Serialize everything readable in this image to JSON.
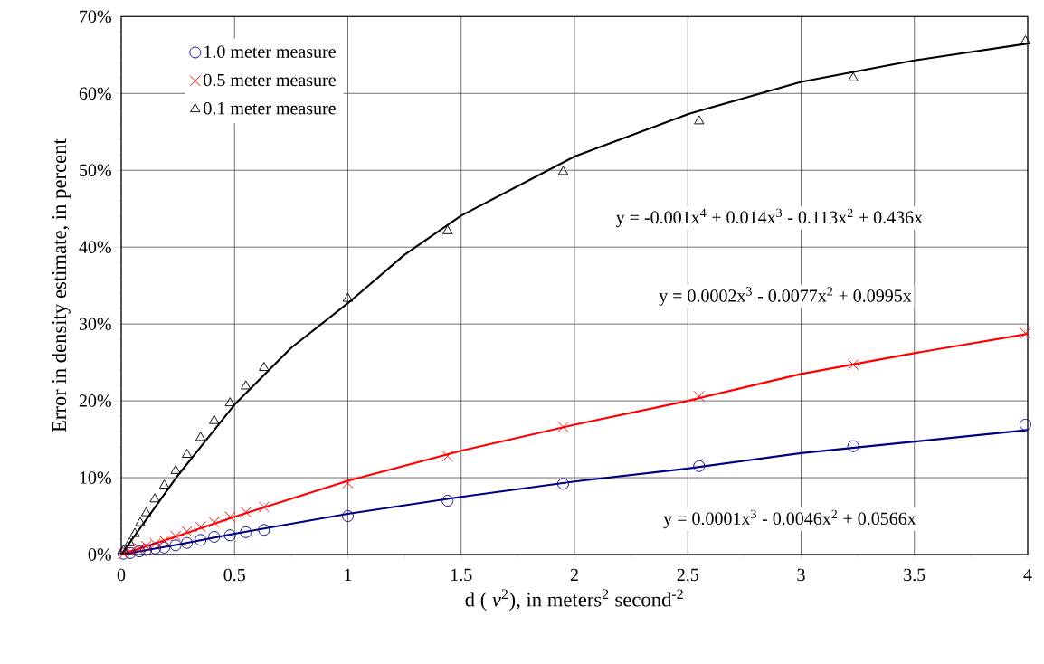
{
  "chart_data": {
    "type": "scatter",
    "xlabel": "d ( *v*$^{2}$), in meters$^{2}$ second$^{-2}$",
    "ylabel": "Error in density estimate, in percent",
    "xlim": [
      0,
      4
    ],
    "xticks": [
      0,
      0.5,
      1,
      1.5,
      2,
      2.5,
      3,
      3.5,
      4
    ],
    "ylim": [
      0,
      70
    ],
    "yticks": [
      {
        "value": 0,
        "label": "0%"
      },
      {
        "value": 10,
        "label": "10%"
      },
      {
        "value": 20,
        "label": "20%"
      },
      {
        "value": 30,
        "label": "30%"
      },
      {
        "value": 40,
        "label": "40%"
      },
      {
        "value": 50,
        "label": "50%"
      },
      {
        "value": 60,
        "label": "60%"
      },
      {
        "value": 70,
        "label": "70%"
      }
    ],
    "grid": true,
    "legend": "top left",
    "annotations": [
      "y = -0.001x$^{4}$ + 0.014x$^{3}$ - 0.113x$^{2}$ + 0.436x",
      "y = 0.0002x$^{3}$ - 0.0077x$^{2}$ + 0.0995x",
      "y = 0.0001x$^{3}$ - 0.0046x$^{2}$ + 0.0566x"
    ],
    "series": [
      {
        "name": "1.0 meter measure",
        "marker": "circle",
        "color": "#000080",
        "x": [
          0.01,
          0.04,
          0.08,
          0.11,
          0.15,
          0.19,
          0.24,
          0.29,
          0.35,
          0.41,
          0.48,
          0.55,
          0.63,
          1.0,
          1.44,
          1.95,
          2.55,
          3.23,
          3.99
        ],
        "values": [
          0.1,
          0.2,
          0.4,
          0.6,
          0.8,
          0.9,
          1.2,
          1.5,
          1.9,
          2.3,
          2.5,
          2.9,
          3.2,
          5.0,
          7.0,
          9.2,
          11.5,
          14.1,
          16.9
        ]
      },
      {
        "name": "0.5 meter measure",
        "marker": "cross",
        "color": "#ff0000",
        "x": [
          0.01,
          0.04,
          0.08,
          0.11,
          0.15,
          0.19,
          0.24,
          0.29,
          0.35,
          0.41,
          0.48,
          0.55,
          0.63,
          1.0,
          1.44,
          1.95,
          2.55,
          3.23,
          3.99
        ],
        "values": [
          0.1,
          0.4,
          0.8,
          1.1,
          1.4,
          1.8,
          2.4,
          3.0,
          3.6,
          4.2,
          4.9,
          5.5,
          6.2,
          9.3,
          12.8,
          16.6,
          20.6,
          24.7,
          28.8
        ]
      },
      {
        "name": "0.1 meter measure",
        "marker": "triangle",
        "color": "#000000",
        "x": [
          0.01,
          0.037,
          0.06,
          0.084,
          0.11,
          0.148,
          0.19,
          0.24,
          0.29,
          0.35,
          0.41,
          0.48,
          0.55,
          0.63,
          1.0,
          1.44,
          1.95,
          2.55,
          3.23,
          3.99
        ],
        "values": [
          0.5,
          1.5,
          2.7,
          4.1,
          5.4,
          7.2,
          9.0,
          10.9,
          13.0,
          15.2,
          17.4,
          19.7,
          21.9,
          24.3,
          33.3,
          42.1,
          49.8,
          56.4,
          62.0,
          66.8
        ]
      },
      {
        "type": "line",
        "marker": "none",
        "color": "#000080",
        "x": [
          0,
          0.25,
          0.5,
          1,
          1.5,
          2,
          2.5,
          3,
          3.5,
          4
        ],
        "values": [
          0,
          1.3,
          2.7,
          5.3,
          7.5,
          9.5,
          11.2,
          13.2,
          14.7,
          16.2
        ]
      },
      {
        "type": "line",
        "marker": "none",
        "color": "#ff0000",
        "x": [
          0,
          0.25,
          0.5,
          1,
          1.5,
          2,
          2.5,
          3,
          3.5,
          4
        ],
        "values": [
          0,
          2.4,
          4.9,
          9.6,
          13.5,
          16.9,
          20.0,
          23.5,
          26.2,
          28.7
        ]
      },
      {
        "type": "line",
        "marker": "none",
        "color": "#000000",
        "x": [
          0,
          0.25,
          0.5,
          0.75,
          1,
          1.25,
          1.5,
          2,
          2.5,
          3,
          3.5,
          4
        ],
        "values": [
          0,
          10.3,
          19.5,
          26.9,
          32.7,
          39.0,
          44.1,
          51.8,
          57.3,
          61.5,
          64.3,
          66.5
        ]
      }
    ]
  }
}
